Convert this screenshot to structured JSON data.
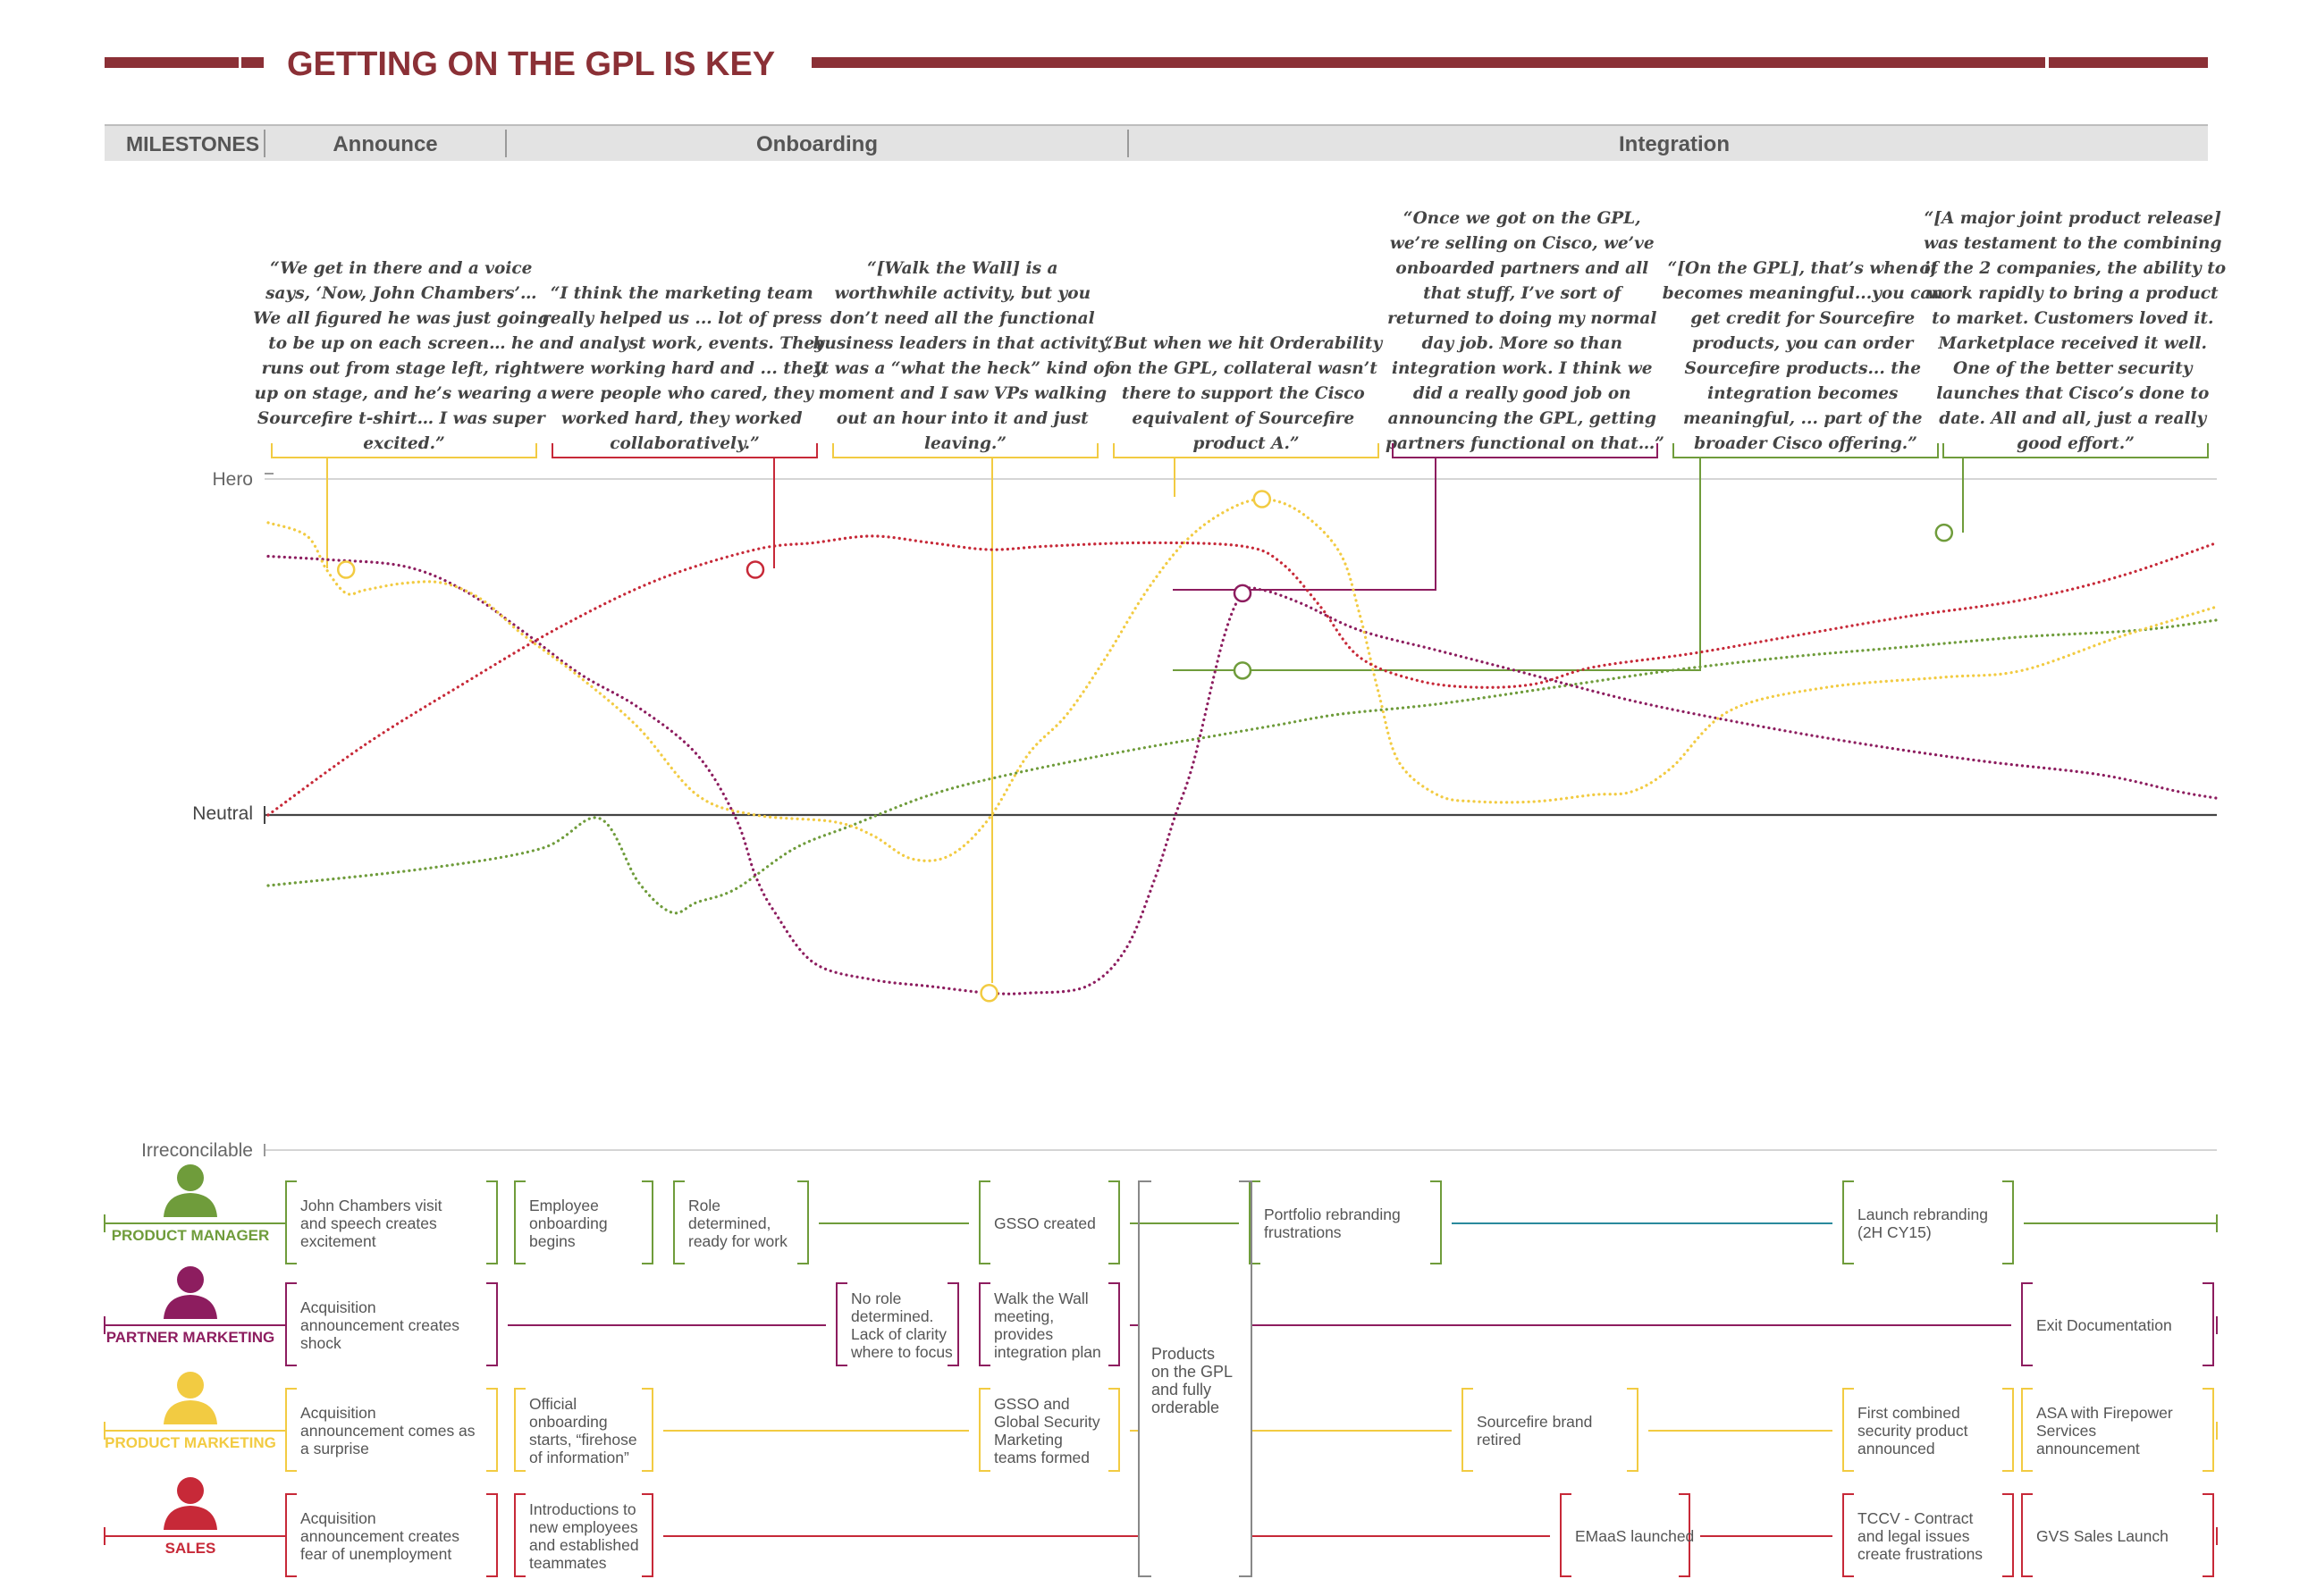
{
  "title": "GETTING ON THE GPL IS KEY",
  "colors": {
    "title": "#8b3036",
    "header_bg": "#e3e3e3",
    "header_text": "#555555",
    "green": "#6f9c3b",
    "purple": "#8d1d5f",
    "yellow": "#f2cb42",
    "red": "#c72938",
    "teal": "#2a8a9c",
    "grey": "#888888"
  },
  "milestones": {
    "label": "MILESTONES",
    "phases": [
      "Announce",
      "Onboarding",
      "Integration"
    ]
  },
  "scale_labels": {
    "hero": "Hero",
    "neutral": "Neutral",
    "irreconcilable": "Irreconcilable"
  },
  "quotes": [
    {
      "color": "yellow",
      "lines": [
        "“We get in there and a voice",
        "says, ‘Now, John Chambers’…",
        "We all figured he was just going",
        "to be up on each screen… he",
        "runs out from stage left, right",
        "up on stage, and he’s wearing a",
        "Sourcefire t-shirt… I was super",
        "excited.”"
      ]
    },
    {
      "color": "red",
      "lines": [
        "“I think the marketing team",
        "really helped us ... lot of press",
        "and analyst work, events. They",
        "were working hard and ... they",
        "were people who cared, they",
        "worked hard, they worked",
        "collaboratively.”"
      ]
    },
    {
      "color": "yellow",
      "lines": [
        "“[Walk the Wall] is a",
        "worthwhile activity, but you",
        "don’t need all the functional",
        "business leaders in that activity.",
        "It was a “what the heck” kind of",
        "moment and I saw VPs walking",
        "out an hour into it and just",
        "leaving.”"
      ]
    },
    {
      "color": "yellow",
      "lines": [
        "“But when we hit Orderability",
        "on the GPL, collateral wasn’t",
        "there to support the Cisco",
        "equivalent of Sourcefire",
        "product A.”"
      ]
    },
    {
      "color": "purple",
      "lines": [
        "“Once we got on the GPL,",
        "we’re selling on Cisco, we’ve",
        "onboarded partners and all",
        "that stuff, I’ve sort of",
        "returned to doing my normal",
        "day job. More so than",
        "integration work. I think we",
        "did a really good job on",
        "announcing the GPL, getting",
        "partners functional on that…”"
      ]
    },
    {
      "color": "green",
      "lines": [
        "“[On the  GPL], that’s when it",
        "becomes meaningful...you can",
        "get credit for Sourcefire",
        "products, you can order",
        "Sourcefire products... the",
        "integration becomes",
        "meaningful, ... part of the",
        "broader Cisco offering.”"
      ]
    },
    {
      "color": "green",
      "lines": [
        "“[A major joint product release]",
        "was testament to the combining",
        "of the 2 companies, the ability to",
        "work rapidly to bring a product",
        "to market. Customers loved it.",
        "Marketplace received it well.",
        "One of the better security",
        "launches that Cisco’s done to",
        "date. All and all, just a really",
        "good effort.”"
      ]
    }
  ],
  "chart_data": {
    "type": "line",
    "xlabel": "",
    "ylabel": "",
    "x_range": [
      0,
      100
    ],
    "y_range": [
      -100,
      100
    ],
    "y_ticks": [
      {
        "value": 100,
        "label": "Hero"
      },
      {
        "value": 0,
        "label": "Neutral"
      },
      {
        "value": -100,
        "label": "Irreconcilable"
      }
    ],
    "series": [
      {
        "role": "product_manager",
        "color": "green",
        "points": [
          [
            0,
            -21
          ],
          [
            8,
            -16
          ],
          [
            14,
            -10
          ],
          [
            17,
            -1
          ],
          [
            19,
            -20
          ],
          [
            20.7,
            -29
          ],
          [
            22,
            -26
          ],
          [
            24,
            -22
          ],
          [
            27,
            -10
          ],
          [
            30,
            -3
          ],
          [
            34,
            6
          ],
          [
            38,
            12
          ],
          [
            44,
            19
          ],
          [
            49,
            24
          ],
          [
            52,
            27
          ],
          [
            55,
            30
          ],
          [
            60,
            33
          ],
          [
            66,
            38
          ],
          [
            72,
            43
          ],
          [
            78,
            47
          ],
          [
            84,
            50
          ],
          [
            90,
            53
          ],
          [
            96,
            55
          ],
          [
            100,
            58
          ]
        ]
      },
      {
        "role": "partner_marketing",
        "color": "purple",
        "points": [
          [
            0,
            77
          ],
          [
            3,
            76
          ],
          [
            7,
            74
          ],
          [
            10,
            67
          ],
          [
            13,
            55
          ],
          [
            16,
            42
          ],
          [
            19,
            32
          ],
          [
            22,
            18
          ],
          [
            24,
            -1
          ],
          [
            25,
            -18
          ],
          [
            26,
            -29
          ],
          [
            28,
            -44
          ],
          [
            31,
            -49
          ],
          [
            34,
            -51
          ],
          [
            37,
            -53
          ],
          [
            39,
            -53
          ],
          [
            42,
            -51
          ],
          [
            44,
            -40
          ],
          [
            45.5,
            -19
          ],
          [
            46.5,
            -1
          ],
          [
            47.5,
            16
          ],
          [
            49,
            52
          ],
          [
            50,
            66
          ],
          [
            51,
            67
          ],
          [
            53,
            63
          ],
          [
            56,
            55
          ],
          [
            60,
            49
          ],
          [
            64,
            43
          ],
          [
            70,
            34
          ],
          [
            76,
            27
          ],
          [
            82,
            21
          ],
          [
            88,
            16
          ],
          [
            94,
            12
          ],
          [
            98,
            7
          ],
          [
            100,
            5
          ]
        ]
      },
      {
        "role": "product_marketing",
        "color": "yellow",
        "points": [
          [
            0,
            87
          ],
          [
            2,
            83
          ],
          [
            3,
            73
          ],
          [
            4,
            66
          ],
          [
            5,
            67
          ],
          [
            7,
            69
          ],
          [
            9,
            69
          ],
          [
            11,
            64
          ],
          [
            13,
            54
          ],
          [
            16,
            41
          ],
          [
            19,
            26
          ],
          [
            22,
            6
          ],
          [
            25,
            0
          ],
          [
            29,
            -2
          ],
          [
            31,
            -6
          ],
          [
            33,
            -13
          ],
          [
            35,
            -12
          ],
          [
            37,
            -1
          ],
          [
            39,
            18
          ],
          [
            41,
            30
          ],
          [
            43,
            47
          ],
          [
            45,
            66
          ],
          [
            47,
            81
          ],
          [
            49,
            90
          ],
          [
            51,
            94
          ],
          [
            53,
            90
          ],
          [
            55,
            78
          ],
          [
            56,
            60
          ],
          [
            57,
            36
          ],
          [
            58,
            16
          ],
          [
            60,
            6
          ],
          [
            62,
            4
          ],
          [
            65,
            4
          ],
          [
            68,
            6
          ],
          [
            70,
            7
          ],
          [
            72,
            14
          ],
          [
            75,
            31
          ],
          [
            80,
            38
          ],
          [
            86,
            41
          ],
          [
            90,
            43
          ],
          [
            95,
            53
          ],
          [
            100,
            62
          ]
        ]
      },
      {
        "role": "sales",
        "color": "red",
        "points": [
          [
            0,
            0
          ],
          [
            5,
            21
          ],
          [
            10,
            39
          ],
          [
            15,
            56
          ],
          [
            20,
            70
          ],
          [
            25,
            79
          ],
          [
            28,
            81
          ],
          [
            31,
            83
          ],
          [
            34,
            81
          ],
          [
            37,
            79
          ],
          [
            40,
            80
          ],
          [
            45,
            81
          ],
          [
            50,
            80
          ],
          [
            52,
            75
          ],
          [
            54,
            62
          ],
          [
            56,
            47
          ],
          [
            59,
            40
          ],
          [
            62,
            38
          ],
          [
            65,
            39
          ],
          [
            68,
            44
          ],
          [
            73,
            48
          ],
          [
            78,
            53
          ],
          [
            84,
            59
          ],
          [
            90,
            64
          ],
          [
            95,
            71
          ],
          [
            100,
            81
          ]
        ]
      }
    ],
    "markers": [
      {
        "series": "product_marketing",
        "quote": 0,
        "x": 4,
        "y": 73
      },
      {
        "series": "sales",
        "quote": 1,
        "x": 25,
        "y": 73
      },
      {
        "series": "product_marketing",
        "quote": 2,
        "x": 37,
        "y": -53
      },
      {
        "series": "product_marketing",
        "quote": 3,
        "x": 51,
        "y": 94
      },
      {
        "series": "partner_marketing",
        "quote": 4,
        "x": 50,
        "y": 66
      },
      {
        "series": "product_manager",
        "quote": 5,
        "x": 50,
        "y": 43
      },
      {
        "series": "product_manager",
        "quote": 6,
        "x": 86,
        "y": 84
      }
    ]
  },
  "roles": [
    {
      "key": "product_manager",
      "label": "PRODUCT MANAGER",
      "color": "green"
    },
    {
      "key": "partner_marketing",
      "label": "PARTNER MARKETING",
      "color": "purple"
    },
    {
      "key": "product_marketing",
      "label": "PRODUCT MARKETING",
      "color": "yellow"
    },
    {
      "key": "sales",
      "label": "SALES",
      "color": "red"
    }
  ],
  "events": [
    {
      "lane": 0,
      "lines": [
        "John Chambers visit",
        "and speech creates",
        "excitement"
      ]
    },
    {
      "lane": 0,
      "lines": [
        "Employee",
        "onboarding",
        "begins"
      ]
    },
    {
      "lane": 0,
      "lines": [
        "Role",
        "determined,",
        "ready for work"
      ]
    },
    {
      "lane": 0,
      "lines": [
        "GSSO created"
      ]
    },
    {
      "lane": 0,
      "lines": [
        "Portfolio rebranding",
        "frustrations"
      ]
    },
    {
      "lane": 0,
      "lines": [
        "Launch rebranding",
        "(2H CY15)"
      ]
    },
    {
      "lane": 1,
      "lines": [
        "Acquisition",
        "announcement creates",
        "shock"
      ]
    },
    {
      "lane": 1,
      "lines": [
        "No role",
        "determined.",
        "Lack of clarity",
        "where to focus"
      ]
    },
    {
      "lane": 1,
      "lines": [
        "Walk the Wall",
        "meeting,",
        "provides",
        "integration plan"
      ]
    },
    {
      "lane": 1,
      "lines": [
        "Exit Documentation"
      ]
    },
    {
      "lane": 2,
      "lines": [
        "Acquisition",
        "announcement comes as",
        "a surprise"
      ]
    },
    {
      "lane": 2,
      "lines": [
        "Official",
        "onboarding",
        "starts, “firehose",
        "of information”"
      ]
    },
    {
      "lane": 2,
      "lines": [
        "GSSO and",
        "Global Security",
        "Marketing",
        "teams formed"
      ]
    },
    {
      "lane": 2,
      "lines": [
        "Sourcefire brand",
        "retired"
      ]
    },
    {
      "lane": 2,
      "lines": [
        "First combined",
        "security product",
        "announced"
      ]
    },
    {
      "lane": 2,
      "lines": [
        "ASA with Firepower",
        "Services",
        "announcement"
      ]
    },
    {
      "lane": 3,
      "lines": [
        "Acquisition",
        "announcement creates",
        "fear of unemployment"
      ]
    },
    {
      "lane": 3,
      "lines": [
        "Introductions to",
        "new employees",
        "and established",
        "teammates"
      ]
    },
    {
      "lane": 3,
      "lines": [
        "EMaaS launched"
      ]
    },
    {
      "lane": 3,
      "lines": [
        "TCCV - Contract",
        "and legal issues",
        "create frustrations"
      ]
    },
    {
      "lane": 3,
      "lines": [
        "GVS Sales Launch"
      ]
    }
  ],
  "gpl_milestone": {
    "lines": [
      "Products",
      "on the GPL",
      "and fully",
      "orderable"
    ]
  }
}
